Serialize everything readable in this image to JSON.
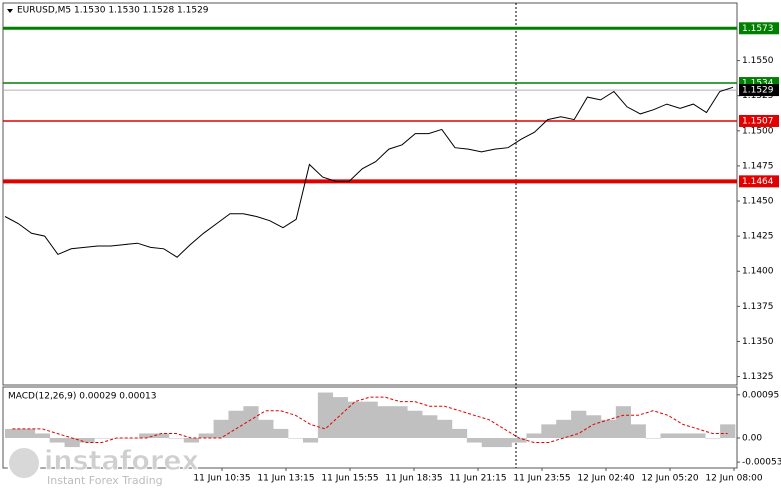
{
  "chart_data": {
    "type": "price-chart",
    "title": "EURUSD,M5  1.1530 1.1530 1.1528 1.1529",
    "ylim": [
      1.1319,
      1.1591
    ],
    "yticks": [
      {
        "value": 1.155,
        "label": "1.1550"
      },
      {
        "value": 1.1525,
        "label": "1.1525"
      },
      {
        "value": 1.15,
        "label": "1.1500"
      },
      {
        "value": 1.1475,
        "label": "1.1475"
      },
      {
        "value": 1.145,
        "label": "1.1450"
      },
      {
        "value": 1.1425,
        "label": "1.1425"
      },
      {
        "value": 1.14,
        "label": "1.1400"
      },
      {
        "value": 1.1375,
        "label": "1.1375"
      },
      {
        "value": 1.135,
        "label": "1.1350"
      },
      {
        "value": 1.1325,
        "label": "1.1325"
      }
    ],
    "series": [
      {
        "name": "EURUSD",
        "color": "#000000",
        "values": [
          1.1439,
          1.1434,
          1.1427,
          1.1425,
          1.1412,
          1.1416,
          1.1417,
          1.1418,
          1.1418,
          1.1419,
          1.142,
          1.1417,
          1.1416,
          1.141,
          1.1419,
          1.1427,
          1.1434,
          1.1441,
          1.1441,
          1.1439,
          1.1436,
          1.1431,
          1.1437,
          1.1476,
          1.1467,
          1.1464,
          1.1464,
          1.1473,
          1.1478,
          1.1487,
          1.149,
          1.1498,
          1.1498,
          1.1501,
          1.1488,
          1.1487,
          1.1485,
          1.1487,
          1.1488,
          1.1494,
          1.1499,
          1.1508,
          1.151,
          1.1508,
          1.1524,
          1.1522,
          1.1528,
          1.1517,
          1.1512,
          1.1515,
          1.1519,
          1.1516,
          1.1519,
          1.1513,
          1.1528,
          1.1531
        ]
      }
    ],
    "levels": [
      {
        "value": 1.1573,
        "color": "#008000",
        "width": 3
      },
      {
        "value": 1.1534,
        "color": "#008000",
        "width": 1.5
      },
      {
        "value": 1.1507,
        "color": "#e00000",
        "width": 1.5
      },
      {
        "value": 1.1464,
        "color": "#e00000",
        "width": 4
      }
    ],
    "bid": {
      "value": 1.1529,
      "color": "#000000"
    },
    "x_labels": [
      "11 Jun 10:35",
      "11 Jun 13:15",
      "11 Jun 15:55",
      "11 Jun 18:35",
      "11 Jun 21:15",
      "11 Jun 23:55",
      "12 Jun 02:40",
      "12 Jun 05:20",
      "12 Jun 08:00"
    ],
    "macd": {
      "title": "MACD(12,26,9) 0.00029 0.00013",
      "ylim": [
        -0.00066,
        0.0011
      ],
      "yticks": [
        0.00095,
        {
          "value": 0,
          "label": "0.00"
        },
        -0.00053
      ],
      "histogram": {
        "color": "#c0c0c0",
        "values": [
          0.0002,
          0.0002,
          0.0001,
          -0.0001,
          -0.0002,
          -0.0001,
          0.0,
          0.0,
          0.0,
          0.0001,
          0.0001,
          0.0,
          -0.0001,
          0.0001,
          0.0004,
          0.0006,
          0.0007,
          0.0004,
          0.0002,
          0.0,
          -0.0001,
          0.001,
          0.0009,
          0.0008,
          0.0008,
          0.0007,
          0.0007,
          0.0006,
          0.0005,
          0.0004,
          0.0002,
          -0.0001,
          -0.0002,
          -0.0002,
          -0.0001,
          0.0001,
          0.0003,
          0.0004,
          0.0006,
          0.0005,
          0.0004,
          0.0007,
          0.0003,
          0.0,
          0.0001,
          0.0001,
          0.0001,
          0.0,
          0.0003
        ]
      },
      "signal": {
        "color": "#e00000",
        "values": [
          0.0002,
          0.0002,
          0.0002,
          0.0001,
          0.0,
          -0.0001,
          -0.0001,
          0.0,
          0.0,
          0.0,
          0.0001,
          0.0001,
          0.0,
          0.0,
          0.0,
          0.0002,
          0.0004,
          0.0006,
          0.0006,
          0.0005,
          0.0003,
          0.0002,
          0.0005,
          0.0008,
          0.0009,
          0.0009,
          0.0008,
          0.0008,
          0.0007,
          0.0007,
          0.0006,
          0.0005,
          0.0004,
          0.0002,
          0.0,
          -0.0001,
          -0.0001,
          0.0,
          0.0001,
          0.0003,
          0.0004,
          0.0005,
          0.0005,
          0.0006,
          0.0005,
          0.0003,
          0.0002,
          0.0001,
          0.0001
        ]
      }
    },
    "watermark": {
      "brand": "instaforex",
      "slogan": "Instant Forex Trading"
    }
  }
}
